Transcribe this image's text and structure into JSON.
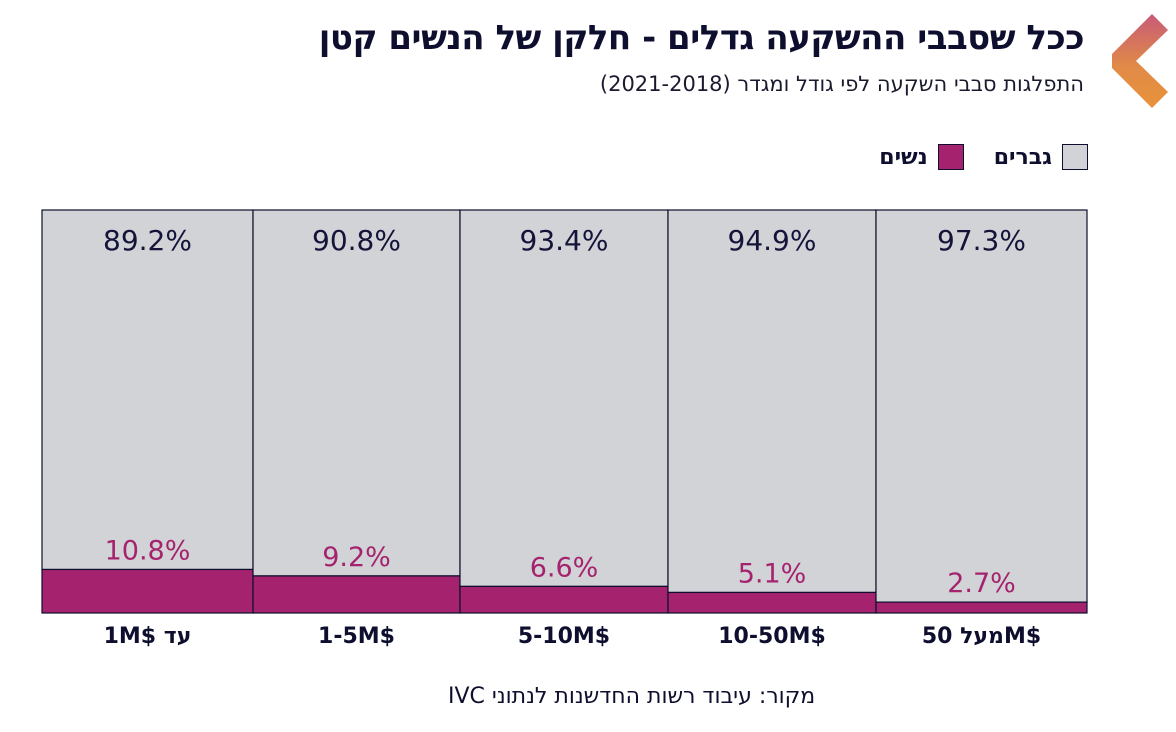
{
  "header": {
    "title": "ככל שסבבי ההשקעה גדלים - חלקן של הנשים קטן",
    "subtitle": "התפלגות סבבי השקעה לפי גודל ומגדר (2021-2018)",
    "logo_icon": "chevron-left-logo-icon"
  },
  "legend": {
    "items": [
      {
        "label": "גברים",
        "color": "#d2d3d6"
      },
      {
        "label": "נשים",
        "color": "#a5236e"
      }
    ]
  },
  "source": "מקור: עיבוד רשות החדשנות לנתוני IVC",
  "chart_data": {
    "type": "bar",
    "stacked": true,
    "normalized": true,
    "title": "ככל שסבבי ההשקעה גדלים - חלקן של הנשים קטן",
    "subtitle": "התפלגות סבבי השקעה לפי גודל ומגדר (2021-2018)",
    "xlabel": "",
    "ylabel": "",
    "ylim": [
      0,
      100
    ],
    "grid": false,
    "legend_position": "top-right",
    "categories": [
      "עד 1M$",
      "1-5M$",
      "5-10M$",
      "10-50M$",
      "מעל 50M$"
    ],
    "category_labels": [
      "1M$ עד",
      "1-5M$",
      "5-10M$",
      "10-50M$",
      "מעל 50M$"
    ],
    "series": [
      {
        "name": "נשים",
        "color": "#a5236e",
        "values": [
          10.8,
          9.2,
          6.6,
          5.1,
          2.7
        ],
        "labels": [
          "10.8%",
          "9.2%",
          "6.6%",
          "5.1%",
          "2.7%"
        ]
      },
      {
        "name": "גברים",
        "color": "#d2d3d6",
        "values": [
          89.2,
          90.8,
          93.4,
          94.9,
          97.3
        ],
        "labels": [
          "89.2%",
          "90.8%",
          "93.4%",
          "94.9%",
          "97.3%"
        ]
      }
    ],
    "colors": {
      "border": "#0e0e2e",
      "male_label": "#14143a",
      "female_label": "#a5236e"
    }
  }
}
